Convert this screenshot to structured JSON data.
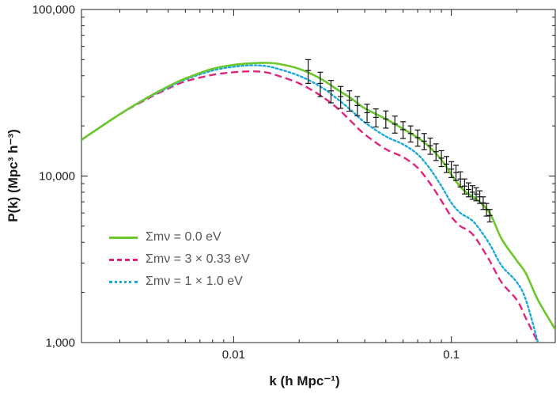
{
  "chart_data": {
    "type": "line",
    "xscale": "log",
    "yscale": "log",
    "xlim": [
      0.002,
      0.3
    ],
    "ylim": [
      1000,
      100000
    ],
    "xlabel": "k (h Mpc⁻¹)",
    "ylabel": "P(k) (Mpc³ h⁻³)",
    "x_ticks": [
      {
        "value": 0.01,
        "label": "0.01"
      },
      {
        "value": 0.1,
        "label": "0.1"
      }
    ],
    "y_ticks": [
      {
        "value": 100000,
        "label": "100,000"
      },
      {
        "value": 10000,
        "label": "10,000"
      },
      {
        "value": 1000,
        "label": "1,000"
      }
    ],
    "legend_position": "lower-left",
    "series": [
      {
        "name": "Σmν = 0.0 eV",
        "color": "#6cc72b",
        "style": "solid",
        "x": [
          0.002,
          0.003,
          0.004,
          0.005,
          0.006,
          0.008,
          0.01,
          0.012,
          0.014,
          0.016,
          0.02,
          0.025,
          0.03,
          0.035,
          0.04,
          0.05,
          0.06,
          0.07,
          0.08,
          0.09,
          0.1,
          0.11,
          0.12,
          0.13,
          0.15,
          0.17,
          0.2,
          0.22,
          0.25,
          0.3
        ],
        "y": [
          16500,
          23500,
          29500,
          34500,
          38500,
          44000,
          46500,
          47500,
          47800,
          47200,
          44000,
          38500,
          33000,
          29000,
          25500,
          22000,
          19200,
          17000,
          14800,
          12500,
          10200,
          8600,
          7800,
          7300,
          6000,
          4200,
          3100,
          2600,
          1800,
          1200
        ]
      },
      {
        "name": "Σmν = 3 × 0.33 eV",
        "color": "#e0237f",
        "style": "dashed",
        "x": [
          0.002,
          0.003,
          0.004,
          0.005,
          0.006,
          0.008,
          0.01,
          0.012,
          0.014,
          0.016,
          0.02,
          0.025,
          0.03,
          0.035,
          0.04,
          0.05,
          0.06,
          0.07,
          0.08,
          0.09,
          0.1,
          0.11,
          0.12,
          0.13,
          0.15,
          0.17,
          0.2,
          0.22,
          0.25
        ],
        "y": [
          16500,
          23500,
          29000,
          33500,
          37000,
          40500,
          42000,
          42500,
          42000,
          40000,
          36000,
          30500,
          25500,
          21000,
          17800,
          14500,
          13000,
          11200,
          9000,
          7100,
          5700,
          5000,
          4700,
          4200,
          3100,
          2300,
          1800,
          1400,
          1000
        ]
      },
      {
        "name": "Σmν = 1 × 1.0 eV",
        "color": "#1ba8df",
        "style": "dotted",
        "x": [
          0.002,
          0.003,
          0.004,
          0.005,
          0.006,
          0.008,
          0.01,
          0.012,
          0.014,
          0.016,
          0.02,
          0.025,
          0.03,
          0.035,
          0.04,
          0.05,
          0.06,
          0.07,
          0.08,
          0.09,
          0.1,
          0.11,
          0.12,
          0.13,
          0.15,
          0.17,
          0.2,
          0.22,
          0.25
        ],
        "y": [
          16500,
          23500,
          29300,
          34000,
          38000,
          43000,
          45300,
          46200,
          45800,
          44000,
          40000,
          34500,
          29000,
          24500,
          21000,
          17300,
          15500,
          13500,
          11000,
          8700,
          6900,
          6000,
          5600,
          5100,
          3900,
          2900,
          2300,
          1800,
          1000
        ]
      }
    ],
    "data_points": {
      "x": [
        0.022,
        0.025,
        0.028,
        0.031,
        0.034,
        0.037,
        0.041,
        0.045,
        0.05,
        0.055,
        0.06,
        0.065,
        0.07,
        0.075,
        0.08,
        0.085,
        0.09,
        0.095,
        0.1,
        0.105,
        0.11,
        0.115,
        0.12,
        0.125,
        0.13,
        0.135,
        0.14,
        0.145,
        0.15
      ],
      "y": [
        43000,
        36000,
        32500,
        30000,
        28500,
        26500,
        24000,
        22500,
        22000,
        20500,
        19000,
        18000,
        17000,
        16200,
        15200,
        14000,
        12800,
        11800,
        11000,
        10500,
        9600,
        8700,
        8300,
        8000,
        7800,
        7500,
        6900,
        6300,
        5800
      ],
      "err": [
        7000,
        6000,
        5000,
        4500,
        4000,
        3500,
        3000,
        2800,
        2600,
        2400,
        2200,
        2000,
        1900,
        1800,
        1700,
        1600,
        1400,
        1300,
        1200,
        1100,
        1000,
        900,
        800,
        750,
        700,
        650,
        600,
        550,
        500
      ],
      "color": "#111111"
    }
  }
}
